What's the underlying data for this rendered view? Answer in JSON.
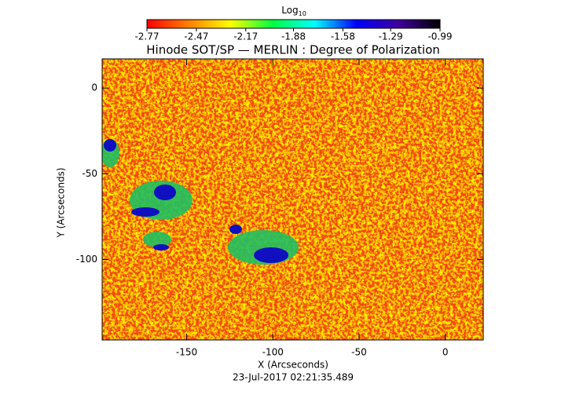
{
  "chart_data": {
    "type": "heatmap",
    "title": "Hinode SOT/SP — MERLIN : Degree of Polarization",
    "xlabel": "X (Arcseconds)",
    "ylabel": "Y (Arcseconds)",
    "date": "23-Jul-2017 02:21:35.489",
    "xlim": [
      -199,
      22
    ],
    "xticks": [
      -150,
      -100,
      -50,
      0
    ],
    "ylim": [
      -147,
      17
    ],
    "yticks": [
      -100,
      -50,
      0
    ],
    "colorbar": {
      "label": "Log",
      "label_sub": "10",
      "clim": [
        -2.77,
        -0.99
      ],
      "ticks": [
        -2.77,
        -2.47,
        -2.17,
        -1.88,
        -1.58,
        -1.29,
        -0.99
      ],
      "colormap": [
        "#ff0000",
        "#ff8000",
        "#ffff00",
        "#00ff40",
        "#00ffff",
        "#0000ff",
        "#4000a0",
        "#000000"
      ]
    }
  }
}
